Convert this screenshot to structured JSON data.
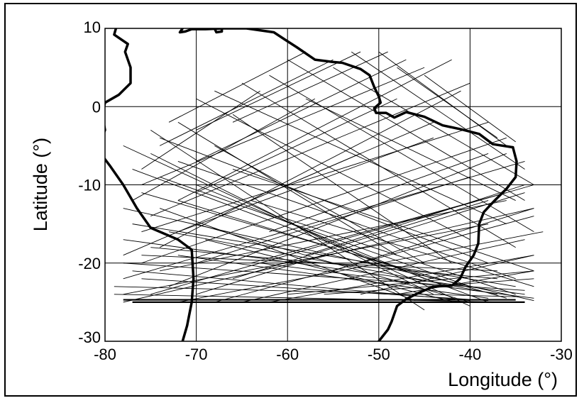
{
  "chart_data": {
    "type": "map",
    "xlabel": "Longitude (°)",
    "ylabel": "Latitude (°)",
    "xlim": [
      -80,
      -30
    ],
    "ylim": [
      -30,
      10
    ],
    "xticks": [
      -80,
      -70,
      -60,
      -50,
      -40,
      -30
    ],
    "yticks": [
      10,
      0,
      -10,
      -20,
      -30
    ],
    "xtick_labels": [
      "-80",
      "-70",
      "-60",
      "-50",
      "-40",
      "-30"
    ],
    "ytick_labels": [
      "10",
      "0",
      "-10",
      "-20",
      "-30"
    ],
    "grid": true,
    "colors": {
      "lines": "#000000",
      "coastline": "#000000",
      "background": "#ffffff"
    },
    "coastline_west": [
      [
        -78.8,
        10
      ],
      [
        -79,
        9.2
      ],
      [
        -77.5,
        8
      ],
      [
        -77.8,
        7
      ],
      [
        -77.2,
        5
      ],
      [
        -77.2,
        3
      ],
      [
        -78.5,
        1.5
      ],
      [
        -80,
        0.5
      ],
      [
        -80.3,
        -1
      ],
      [
        -80,
        -3
      ],
      [
        -80.8,
        -5.5
      ],
      [
        -79.5,
        -7.5
      ],
      [
        -78,
        -10
      ],
      [
        -76.5,
        -13
      ],
      [
        -75,
        -15.5
      ],
      [
        -72,
        -17
      ],
      [
        -70.5,
        -18.3
      ],
      [
        -70.3,
        -22
      ],
      [
        -70.5,
        -25
      ],
      [
        -71,
        -28
      ],
      [
        -71.5,
        -30
      ]
    ],
    "coastline_north": [
      [
        -71.5,
        10
      ],
      [
        -71.8,
        9.5
      ],
      [
        -71.2,
        9.6
      ],
      [
        -70.5,
        9.9
      ],
      [
        -69,
        9.9
      ],
      [
        -67,
        10
      ],
      [
        -64.5,
        10
      ],
      [
        -61.5,
        9.5
      ],
      [
        -60.2,
        8.5
      ],
      [
        -59,
        7.6
      ],
      [
        -57,
        6
      ],
      [
        -55,
        5.7
      ],
      [
        -54,
        5.6
      ],
      [
        -52,
        4.8
      ],
      [
        -51,
        4
      ],
      [
        -50.5,
        2.5
      ],
      [
        -50,
        1.3
      ],
      [
        -49.8,
        0.5
      ],
      [
        -50.5,
        -0.2
      ],
      [
        -50.3,
        -0.8
      ],
      [
        -49.2,
        -0.8
      ],
      [
        -48.3,
        -1.4
      ],
      [
        -47,
        -0.7
      ],
      [
        -45,
        -1.3
      ],
      [
        -43,
        -2.4
      ],
      [
        -41,
        -2.9
      ],
      [
        -39,
        -3.5
      ],
      [
        -37.5,
        -4.8
      ],
      [
        -35.3,
        -5.2
      ]
    ],
    "coastline_east": [
      [
        -35.3,
        -5.2
      ],
      [
        -34.9,
        -7
      ],
      [
        -35,
        -9
      ],
      [
        -36,
        -10.5
      ],
      [
        -37.3,
        -12
      ],
      [
        -38.5,
        -13.5
      ],
      [
        -39,
        -15
      ],
      [
        -39.1,
        -17.5
      ],
      [
        -39.6,
        -19
      ],
      [
        -40.5,
        -20.5
      ],
      [
        -41.1,
        -22
      ],
      [
        -42,
        -22.9
      ],
      [
        -44,
        -23
      ],
      [
        -45.6,
        -23.8
      ],
      [
        -47,
        -24.6
      ],
      [
        -48,
        -25.5
      ],
      [
        -48.6,
        -27.5
      ],
      [
        -49,
        -28.5
      ],
      [
        -50,
        -30
      ]
    ],
    "coastline_caribbean": [
      [
        -68,
        10
      ],
      [
        -67.8,
        9.5
      ],
      [
        -67.2,
        9.6
      ],
      [
        -67.2,
        10
      ]
    ],
    "tracks_west_south": [
      [
        -75,
        -3,
        -45,
        -26
      ],
      [
        -78,
        -5,
        -40,
        -25.5
      ],
      [
        -75,
        -6,
        -44,
        -24
      ],
      [
        -77,
        -8,
        -38,
        -25
      ],
      [
        -74,
        -9,
        -40,
        -23
      ],
      [
        -76,
        -11,
        -36,
        -24.5
      ],
      [
        -78,
        -13,
        -33,
        -24.8
      ],
      [
        -77,
        -15,
        -35,
        -23
      ],
      [
        -78,
        -17,
        -34,
        -24
      ],
      [
        -75,
        -18,
        -37,
        -22
      ],
      [
        -78,
        -20,
        -34,
        -23.5
      ],
      [
        -76,
        -22,
        -38,
        -24.8
      ],
      [
        -79,
        -23,
        -35,
        -24.3
      ],
      [
        -72,
        -12,
        -44,
        -22
      ],
      [
        -70,
        -15,
        -40,
        -25
      ],
      [
        -73,
        -16,
        -37,
        -24
      ],
      [
        -70,
        -10,
        -45,
        -22
      ],
      [
        -68,
        -5,
        -45,
        -20
      ],
      [
        -72,
        -2,
        -48,
        -19
      ],
      [
        -66,
        -1,
        -42,
        -20
      ],
      [
        -74,
        -4,
        -38,
        -20
      ],
      [
        -70,
        1,
        -40,
        -17
      ],
      [
        -72,
        -7,
        -35,
        -22
      ],
      [
        -76,
        -19,
        -37,
        -21
      ],
      [
        -65,
        3,
        -35,
        -18
      ],
      [
        -62,
        4,
        -33,
        -16
      ],
      [
        -68,
        2,
        -36,
        -15
      ],
      [
        -60,
        6,
        -34,
        -12
      ],
      [
        -77,
        -21,
        -40,
        -24.8
      ],
      [
        -79,
        -24,
        -36,
        -25
      ],
      [
        -66,
        -8,
        -33,
        -21
      ],
      [
        -64,
        -12,
        -33,
        -23
      ],
      [
        -72,
        -19,
        -38,
        -24.5
      ],
      [
        -61,
        -14,
        -35,
        -24
      ],
      [
        -58,
        1,
        -35,
        -12
      ],
      [
        -55,
        5,
        -33,
        -10
      ],
      [
        -53,
        7,
        -34,
        -8
      ],
      [
        -50,
        7,
        -36,
        -5
      ],
      [
        -48,
        5,
        -37,
        -4
      ],
      [
        -45,
        4,
        -35,
        -4.5
      ],
      [
        -63,
        -20,
        -33,
        -24.5
      ],
      [
        -74,
        -13,
        -46,
        -24.8
      ],
      [
        -69,
        -17,
        -42,
        -24.9
      ]
    ],
    "tracks_west_north": [
      [
        -76,
        -20,
        -36,
        -4
      ],
      [
        -78,
        -22,
        -34,
        -7
      ],
      [
        -75,
        -24,
        -33,
        -10
      ],
      [
        -78,
        -25,
        -33,
        -13
      ],
      [
        -72,
        -25,
        -32,
        -16
      ],
      [
        -76,
        -16,
        -38,
        -2
      ],
      [
        -73,
        -23,
        -36,
        -6
      ],
      [
        -70,
        -24,
        -34,
        -11
      ],
      [
        -74,
        -18,
        -41,
        2
      ],
      [
        -75,
        -14,
        -40,
        3
      ],
      [
        -76,
        -10,
        -45,
        5
      ],
      [
        -72,
        -12,
        -42,
        6
      ],
      [
        -70,
        -7,
        -47,
        6
      ],
      [
        -74,
        -5,
        -55,
        6
      ],
      [
        -70,
        -3,
        -52,
        7
      ],
      [
        -66,
        -2,
        -49,
        7
      ],
      [
        -76,
        -8,
        -63,
        2
      ],
      [
        -73,
        -2,
        -58,
        7
      ],
      [
        -68,
        -25,
        -33,
        -14
      ],
      [
        -65,
        -25,
        -34,
        -17
      ],
      [
        -62,
        -25,
        -33,
        -19
      ],
      [
        -78,
        -24,
        -38,
        -15
      ],
      [
        -74,
        -21,
        -36,
        -12
      ],
      [
        -60,
        -24,
        -33,
        -21
      ],
      [
        -56,
        -24,
        -33,
        -22
      ],
      [
        -70,
        -20,
        -40,
        -9
      ],
      [
        -66,
        -22,
        -38,
        -12
      ],
      [
        -72,
        -16,
        -44,
        -4
      ],
      [
        -68,
        -14,
        -44,
        -2
      ],
      [
        -64,
        -20,
        -36,
        -11
      ],
      [
        -78,
        -19,
        -52,
        -6
      ],
      [
        -77,
        -12,
        -57,
        1
      ],
      [
        -58,
        -19,
        -34,
        -10
      ],
      [
        -55,
        -21,
        -33,
        -13
      ],
      [
        -62,
        -16,
        -38,
        -6
      ],
      [
        -70,
        -11,
        -48,
        1
      ],
      [
        -52,
        -24,
        -33,
        -19
      ],
      [
        -48,
        -24,
        -33,
        -21
      ]
    ],
    "tracks_bottom": [
      [
        -77,
        -25,
        -34,
        -25
      ],
      [
        -78,
        -24.7,
        -35,
        -24.7
      ]
    ]
  }
}
